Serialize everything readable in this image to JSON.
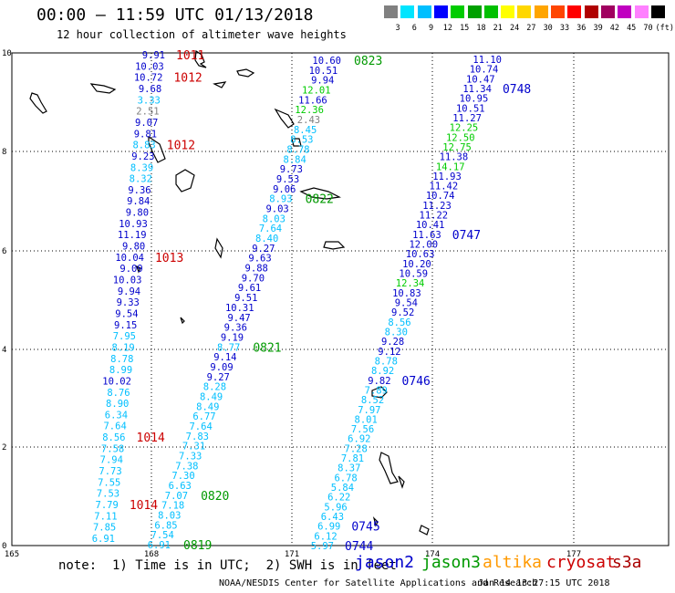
{
  "title": "00:00 – 11:59 UTC 01/13/2018",
  "subtitle": "12 hour collection of altimeter wave heights",
  "color_scale": {
    "labels": [
      "3",
      "6",
      "9",
      "12",
      "15",
      "18",
      "21",
      "24",
      "27",
      "30",
      "33",
      "36",
      "39",
      "42",
      "45",
      "70",
      "(ft)"
    ],
    "colors": [
      "#808080",
      "#00e5ff",
      "#00bfff",
      "#0000ff",
      "#00cc00",
      "#00a000",
      "#00c000",
      "#ffff00",
      "#ffd700",
      "#ffa500",
      "#ff4500",
      "#ff0000",
      "#b00000",
      "#a00060",
      "#c000c0",
      "#ff80ff",
      "#000000"
    ]
  },
  "axes": {
    "x_ticks": [
      "165",
      "168",
      "171",
      "174",
      "177"
    ],
    "y_ticks": [
      "10",
      "8",
      "6",
      "4",
      "2",
      "0"
    ]
  },
  "note": "note:  1) Time is in UTC;  2) SWH is in feet",
  "satellites": [
    {
      "name": "jason2",
      "color": "#0000cc"
    },
    {
      "name": "jason3",
      "color": "#009900"
    },
    {
      "name": "altika",
      "color": "#ff9900"
    },
    {
      "name": "cryosat",
      "color": "#cc0000"
    },
    {
      "name": "s3a",
      "color": "#aa0000"
    }
  ],
  "footer_left": "NOAA/NESDIS Center for Satellite Applications and Research",
  "footer_right": "Jan 14 13:27:15 UTC 2018",
  "tracks": [
    {
      "satellite": "cryosat",
      "values": [
        {
          "v": "9.91",
          "c": "#0000cc"
        },
        {
          "v": "10.03",
          "c": "#0000cc"
        },
        {
          "v": "10.72",
          "c": "#0000cc"
        },
        {
          "v": "9.68",
          "c": "#0000cc"
        },
        {
          "v": "3.33",
          "c": "#00bfff"
        },
        {
          "v": "2.51",
          "c": "#808080"
        },
        {
          "v": "9.07",
          "c": "#0000cc"
        },
        {
          "v": "9.81",
          "c": "#0000cc"
        },
        {
          "v": "8.83",
          "c": "#00bfff"
        },
        {
          "v": "9.23",
          "c": "#0000cc"
        },
        {
          "v": "8.39",
          "c": "#00bfff"
        },
        {
          "v": "8.32",
          "c": "#00bfff"
        },
        {
          "v": "9.36",
          "c": "#0000cc"
        },
        {
          "v": "9.84",
          "c": "#0000cc"
        },
        {
          "v": "9.80",
          "c": "#0000cc"
        },
        {
          "v": "10.93",
          "c": "#0000cc"
        },
        {
          "v": "11.19",
          "c": "#0000cc"
        },
        {
          "v": "9.80",
          "c": "#0000cc"
        },
        {
          "v": "10.04",
          "c": "#0000cc"
        },
        {
          "v": "9.09",
          "c": "#0000cc"
        },
        {
          "v": "10.03",
          "c": "#0000cc"
        },
        {
          "v": "9.94",
          "c": "#0000cc"
        },
        {
          "v": "9.33",
          "c": "#0000cc"
        },
        {
          "v": "9.54",
          "c": "#0000cc"
        },
        {
          "v": "9.15",
          "c": "#0000cc"
        },
        {
          "v": "7.95",
          "c": "#00bfff"
        },
        {
          "v": "8.19",
          "c": "#00bfff"
        },
        {
          "v": "8.78",
          "c": "#00bfff"
        },
        {
          "v": "8.99",
          "c": "#00bfff"
        },
        {
          "v": "10.02",
          "c": "#0000cc"
        },
        {
          "v": "8.76",
          "c": "#00bfff"
        },
        {
          "v": "8.90",
          "c": "#00bfff"
        },
        {
          "v": "6.34",
          "c": "#00bfff"
        },
        {
          "v": "7.64",
          "c": "#00bfff"
        },
        {
          "v": "8.56",
          "c": "#00bfff"
        },
        {
          "v": "7.58",
          "c": "#00bfff"
        },
        {
          "v": "7.94",
          "c": "#00bfff"
        },
        {
          "v": "7.73",
          "c": "#00bfff"
        },
        {
          "v": "7.55",
          "c": "#00bfff"
        },
        {
          "v": "7.53",
          "c": "#00bfff"
        },
        {
          "v": "7.79",
          "c": "#00bfff"
        },
        {
          "v": "7.11",
          "c": "#00bfff"
        },
        {
          "v": "7.85",
          "c": "#00bfff"
        },
        {
          "v": "6.91",
          "c": "#00bfff"
        }
      ],
      "times": [
        {
          "t": "1011",
          "c": "#cc0000",
          "i": 0
        },
        {
          "t": "1012",
          "c": "#cc0000",
          "i": 2
        },
        {
          "t": "1012",
          "c": "#cc0000",
          "i": 8
        },
        {
          "t": "1013",
          "c": "#cc0000",
          "i": 18
        },
        {
          "t": "1014",
          "c": "#cc0000",
          "i": 34
        },
        {
          "t": "1014",
          "c": "#cc0000",
          "i": 40
        }
      ]
    },
    {
      "satellite": "jason3",
      "values": [
        {
          "v": "10.60",
          "c": "#0000cc"
        },
        {
          "v": "10.51",
          "c": "#0000cc"
        },
        {
          "v": "9.94",
          "c": "#0000cc"
        },
        {
          "v": "12.01",
          "c": "#00cc00"
        },
        {
          "v": "11.66",
          "c": "#0000cc"
        },
        {
          "v": "12.36",
          "c": "#00cc00"
        },
        {
          "v": "2.43",
          "c": "#808080"
        },
        {
          "v": "8.45",
          "c": "#00bfff"
        },
        {
          "v": "8.53",
          "c": "#00bfff"
        },
        {
          "v": "8.78",
          "c": "#00bfff"
        },
        {
          "v": "8.84",
          "c": "#00bfff"
        },
        {
          "v": "9.73",
          "c": "#0000cc"
        },
        {
          "v": "9.53",
          "c": "#0000cc"
        },
        {
          "v": "9.06",
          "c": "#0000cc"
        },
        {
          "v": "8.93",
          "c": "#00bfff"
        },
        {
          "v": "9.03",
          "c": "#0000cc"
        },
        {
          "v": "8.03",
          "c": "#00bfff"
        },
        {
          "v": "7.64",
          "c": "#00bfff"
        },
        {
          "v": "8.40",
          "c": "#00bfff"
        },
        {
          "v": "9.27",
          "c": "#0000cc"
        },
        {
          "v": "9.63",
          "c": "#0000cc"
        },
        {
          "v": "9.88",
          "c": "#0000cc"
        },
        {
          "v": "9.70",
          "c": "#0000cc"
        },
        {
          "v": "9.61",
          "c": "#0000cc"
        },
        {
          "v": "9.51",
          "c": "#0000cc"
        },
        {
          "v": "10.31",
          "c": "#0000cc"
        },
        {
          "v": "9.47",
          "c": "#0000cc"
        },
        {
          "v": "9.36",
          "c": "#0000cc"
        },
        {
          "v": "9.19",
          "c": "#0000cc"
        },
        {
          "v": "8.77",
          "c": "#00bfff"
        },
        {
          "v": "9.14",
          "c": "#0000cc"
        },
        {
          "v": "9.09",
          "c": "#0000cc"
        },
        {
          "v": "9.27",
          "c": "#0000cc"
        },
        {
          "v": "8.28",
          "c": "#00bfff"
        },
        {
          "v": "8.49",
          "c": "#00bfff"
        },
        {
          "v": "8.49",
          "c": "#00bfff"
        },
        {
          "v": "6.77",
          "c": "#00bfff"
        },
        {
          "v": "7.64",
          "c": "#00bfff"
        },
        {
          "v": "7.83",
          "c": "#00bfff"
        },
        {
          "v": "7.31",
          "c": "#00bfff"
        },
        {
          "v": "7.33",
          "c": "#00bfff"
        },
        {
          "v": "7.38",
          "c": "#00bfff"
        },
        {
          "v": "7.30",
          "c": "#00bfff"
        },
        {
          "v": "6.63",
          "c": "#00bfff"
        },
        {
          "v": "7.07",
          "c": "#00bfff"
        },
        {
          "v": "7.18",
          "c": "#00bfff"
        },
        {
          "v": "8.03",
          "c": "#00bfff"
        },
        {
          "v": "6.85",
          "c": "#00bfff"
        },
        {
          "v": "7.54",
          "c": "#00bfff"
        },
        {
          "v": "6.91",
          "c": "#00bfff"
        }
      ],
      "times": [
        {
          "t": "0823",
          "c": "#009900",
          "i": 0
        },
        {
          "t": "0822",
          "c": "#009900",
          "i": 14
        },
        {
          "t": "0821",
          "c": "#009900",
          "i": 29
        },
        {
          "t": "0820",
          "c": "#009900",
          "i": 44
        },
        {
          "t": "0819",
          "c": "#009900",
          "i": 49
        }
      ]
    },
    {
      "satellite": "jason2",
      "values": [
        {
          "v": "11.10",
          "c": "#0000cc"
        },
        {
          "v": "10.74",
          "c": "#0000cc"
        },
        {
          "v": "10.47",
          "c": "#0000cc"
        },
        {
          "v": "11.34",
          "c": "#0000cc"
        },
        {
          "v": "10.95",
          "c": "#0000cc"
        },
        {
          "v": "10.51",
          "c": "#0000cc"
        },
        {
          "v": "11.27",
          "c": "#0000cc"
        },
        {
          "v": "12.25",
          "c": "#00cc00"
        },
        {
          "v": "12.50",
          "c": "#00cc00"
        },
        {
          "v": "12.75",
          "c": "#00cc00"
        },
        {
          "v": "11.38",
          "c": "#0000cc"
        },
        {
          "v": "14.17",
          "c": "#00cc00"
        },
        {
          "v": "11.93",
          "c": "#0000cc"
        },
        {
          "v": "11.42",
          "c": "#0000cc"
        },
        {
          "v": "10.74",
          "c": "#0000cc"
        },
        {
          "v": "11.23",
          "c": "#0000cc"
        },
        {
          "v": "11.22",
          "c": "#0000cc"
        },
        {
          "v": "10.41",
          "c": "#0000cc"
        },
        {
          "v": "11.63",
          "c": "#0000cc"
        },
        {
          "v": "12.00",
          "c": "#0000cc"
        },
        {
          "v": "10.63",
          "c": "#0000cc"
        },
        {
          "v": "10.20",
          "c": "#0000cc"
        },
        {
          "v": "10.59",
          "c": "#0000cc"
        },
        {
          "v": "12.34",
          "c": "#00cc00"
        },
        {
          "v": "10.83",
          "c": "#0000cc"
        },
        {
          "v": "9.54",
          "c": "#0000cc"
        },
        {
          "v": "9.52",
          "c": "#0000cc"
        },
        {
          "v": "8.56",
          "c": "#00bfff"
        },
        {
          "v": "8.30",
          "c": "#00bfff"
        },
        {
          "v": "9.28",
          "c": "#0000cc"
        },
        {
          "v": "9.12",
          "c": "#0000cc"
        },
        {
          "v": "8.78",
          "c": "#00bfff"
        },
        {
          "v": "8.92",
          "c": "#00bfff"
        },
        {
          "v": "9.82",
          "c": "#0000cc"
        },
        {
          "v": "7.89",
          "c": "#00bfff"
        },
        {
          "v": "8.52",
          "c": "#00bfff"
        },
        {
          "v": "7.97",
          "c": "#00bfff"
        },
        {
          "v": "8.01",
          "c": "#00bfff"
        },
        {
          "v": "7.56",
          "c": "#00bfff"
        },
        {
          "v": "6.92",
          "c": "#00bfff"
        },
        {
          "v": "7.28",
          "c": "#00bfff"
        },
        {
          "v": "7.81",
          "c": "#00bfff"
        },
        {
          "v": "8.37",
          "c": "#00bfff"
        },
        {
          "v": "6.78",
          "c": "#00bfff"
        },
        {
          "v": "5.84",
          "c": "#00bfff"
        },
        {
          "v": "6.22",
          "c": "#00bfff"
        },
        {
          "v": "5.96",
          "c": "#00bfff"
        },
        {
          "v": "6.43",
          "c": "#00bfff"
        },
        {
          "v": "6.99",
          "c": "#00bfff"
        },
        {
          "v": "6.12",
          "c": "#00bfff"
        },
        {
          "v": "5.97",
          "c": "#00bfff"
        }
      ],
      "times": [
        {
          "t": "0748",
          "c": "#0000cc",
          "i": 3
        },
        {
          "t": "0747",
          "c": "#0000cc",
          "i": 18
        },
        {
          "t": "0746",
          "c": "#0000cc",
          "i": 33
        },
        {
          "t": "0745",
          "c": "#0000cc",
          "i": 48
        },
        {
          "t": "0744",
          "c": "#0000cc",
          "i": 50
        }
      ]
    }
  ]
}
